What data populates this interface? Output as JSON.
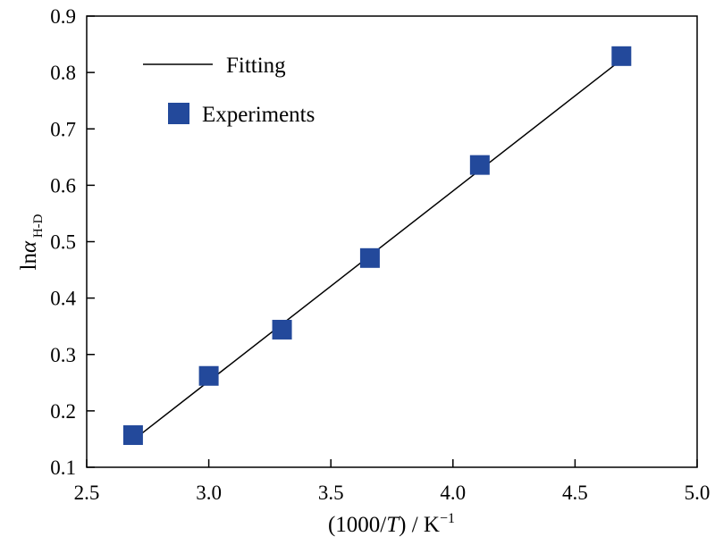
{
  "chart_data": {
    "type": "scatter",
    "x_label": {
      "prefix": "(1000/",
      "italic": "T",
      "suffix": ") /  K",
      "sup": "−1"
    },
    "y_label": {
      "prefix": "ln",
      "italic": "α",
      "sub": " H-D"
    },
    "xlim": [
      2.5,
      5.0
    ],
    "ylim": [
      0.1,
      0.9
    ],
    "x_ticks": [
      "2.5",
      "3.0",
      "3.5",
      "4.0",
      "4.5",
      "5.0"
    ],
    "y_ticks": [
      "0.1",
      "0.2",
      "0.3",
      "0.4",
      "0.5",
      "0.6",
      "0.7",
      "0.8",
      "0.9"
    ],
    "legend_position": "top-left",
    "series": [
      {
        "name": "Fitting",
        "kind": "line",
        "color": "#000000",
        "x": [
          2.69,
          4.7
        ],
        "y": [
          0.148,
          0.826
        ]
      },
      {
        "name": "Experiments",
        "kind": "scatter",
        "marker": "square",
        "color": "#23499b",
        "x": [
          2.69,
          3.0,
          3.3,
          3.66,
          4.11,
          4.69
        ],
        "y": [
          0.157,
          0.262,
          0.344,
          0.471,
          0.636,
          0.829
        ]
      }
    ]
  }
}
